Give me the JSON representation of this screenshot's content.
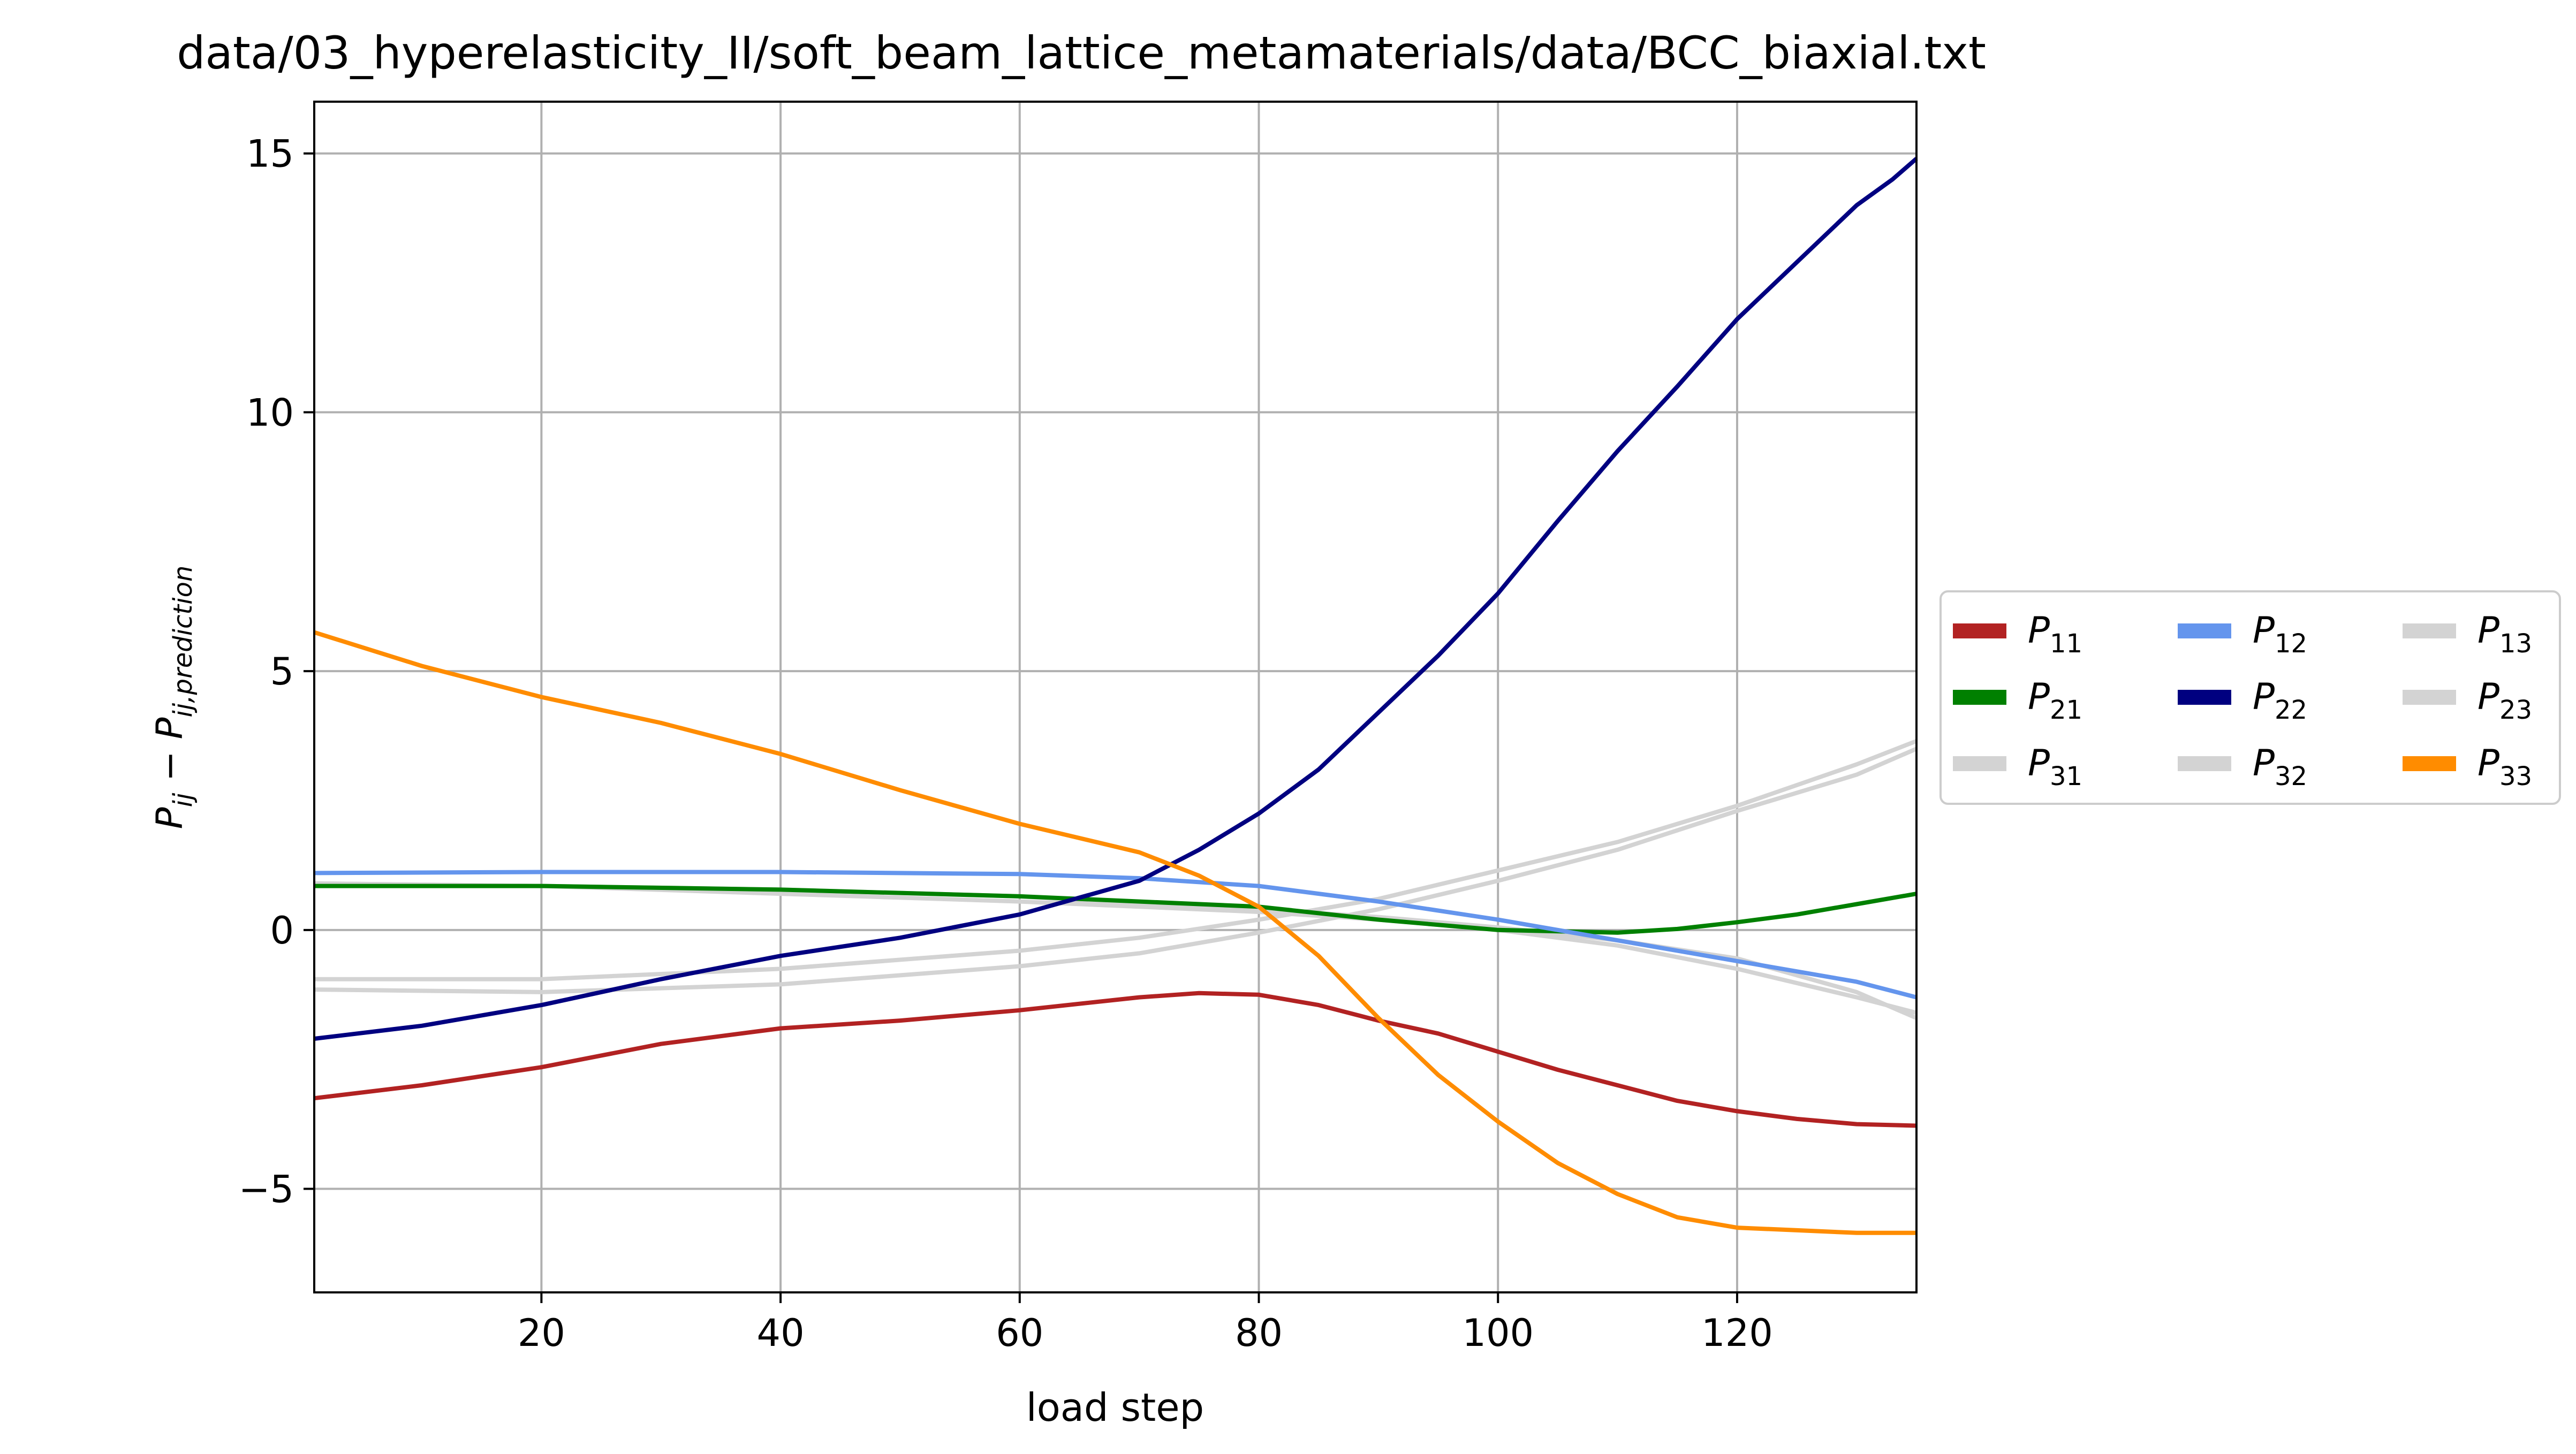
{
  "chart_data": {
    "type": "line",
    "title": "data/03_hyperelasticity_II/soft_beam_lattice_metamaterials/data/BCC_biaxial.txt",
    "xlabel": "load step",
    "ylabel": "P_ij − P_ij,prediction",
    "xlim": [
      1,
      135
    ],
    "ylim": [
      -7,
      16
    ],
    "xticks": [
      20,
      40,
      60,
      80,
      100,
      120
    ],
    "xtick_labels": [
      "20",
      "40",
      "60",
      "80",
      "100",
      "120"
    ],
    "yticks": [
      -5,
      0,
      5,
      10,
      15
    ],
    "ytick_labels": [
      "−5",
      "0",
      "5",
      "10",
      "15"
    ],
    "grid": true,
    "legend_placement": "outside-right",
    "legend_columns": 3,
    "series": [
      {
        "name": "P_11",
        "sub": "11",
        "color": "#b22222",
        "x": [
          1,
          10,
          20,
          30,
          40,
          50,
          60,
          70,
          75,
          80,
          85,
          90,
          95,
          100,
          105,
          110,
          115,
          120,
          125,
          130,
          135
        ],
        "y": [
          -3.25,
          -3.0,
          -2.65,
          -2.2,
          -1.9,
          -1.75,
          -1.55,
          -1.3,
          -1.22,
          -1.25,
          -1.45,
          -1.75,
          -2.0,
          -2.35,
          -2.7,
          -3.0,
          -3.3,
          -3.5,
          -3.65,
          -3.75,
          -3.78
        ]
      },
      {
        "name": "P_21",
        "sub": "21",
        "color": "#008000",
        "x": [
          1,
          20,
          40,
          60,
          80,
          90,
          100,
          110,
          115,
          120,
          125,
          130,
          135
        ],
        "y": [
          0.85,
          0.85,
          0.78,
          0.65,
          0.45,
          0.2,
          0.0,
          -0.05,
          0.02,
          0.15,
          0.3,
          0.5,
          0.7
        ]
      },
      {
        "name": "P_31",
        "sub": "31",
        "color": "#d3d3d3",
        "x": [
          1,
          20,
          40,
          60,
          70,
          80,
          90,
          100,
          110,
          120,
          130,
          135
        ],
        "y": [
          -0.95,
          -0.95,
          -0.75,
          -0.4,
          -0.15,
          0.2,
          0.6,
          1.15,
          1.7,
          2.4,
          3.2,
          3.65
        ]
      },
      {
        "name": "P_12",
        "sub": "12",
        "color": "#6495ed",
        "x": [
          1,
          20,
          40,
          60,
          70,
          80,
          90,
          100,
          110,
          120,
          130,
          135
        ],
        "y": [
          1.1,
          1.12,
          1.12,
          1.08,
          1.0,
          0.85,
          0.55,
          0.2,
          -0.2,
          -0.6,
          -1.0,
          -1.3
        ]
      },
      {
        "name": "P_22",
        "sub": "22",
        "color": "#000080",
        "x": [
          1,
          10,
          20,
          30,
          40,
          50,
          60,
          70,
          75,
          80,
          85,
          90,
          95,
          100,
          105,
          110,
          115,
          120,
          125,
          130,
          133,
          135
        ],
        "y": [
          -2.1,
          -1.85,
          -1.45,
          -0.95,
          -0.5,
          -0.15,
          0.3,
          0.95,
          1.55,
          2.25,
          3.1,
          4.2,
          5.3,
          6.5,
          7.9,
          9.25,
          10.5,
          11.8,
          12.9,
          14.0,
          14.5,
          14.9
        ]
      },
      {
        "name": "P_32",
        "sub": "32",
        "color": "#d3d3d3",
        "x": [
          1,
          20,
          40,
          60,
          70,
          80,
          90,
          100,
          110,
          120,
          130,
          135
        ],
        "y": [
          -1.15,
          -1.2,
          -1.05,
          -0.7,
          -0.45,
          -0.05,
          0.4,
          0.95,
          1.55,
          2.3,
          3.0,
          3.5
        ]
      },
      {
        "name": "P_13",
        "sub": "13",
        "color": "#d3d3d3",
        "x": [
          1,
          20,
          40,
          60,
          70,
          80,
          90,
          100,
          110,
          120,
          130,
          135
        ],
        "y": [
          0.9,
          0.85,
          0.7,
          0.55,
          0.45,
          0.35,
          0.2,
          0.0,
          -0.3,
          -0.75,
          -1.3,
          -1.6
        ]
      },
      {
        "name": "P_23",
        "sub": "23",
        "color": "#d3d3d3",
        "x": [
          1,
          20,
          40,
          60,
          70,
          80,
          90,
          100,
          110,
          120,
          130,
          135
        ],
        "y": [
          0.9,
          0.85,
          0.78,
          0.65,
          0.5,
          0.4,
          0.25,
          0.05,
          -0.2,
          -0.55,
          -1.2,
          -1.7
        ]
      },
      {
        "name": "P_33",
        "sub": "33",
        "color": "#ff8c00",
        "x": [
          1,
          10,
          20,
          30,
          40,
          50,
          60,
          70,
          75,
          80,
          85,
          90,
          95,
          100,
          105,
          110,
          115,
          120,
          125,
          130,
          135
        ],
        "y": [
          5.75,
          5.1,
          4.5,
          4.0,
          3.4,
          2.7,
          2.05,
          1.5,
          1.05,
          0.45,
          -0.5,
          -1.7,
          -2.8,
          -3.7,
          -4.5,
          -5.1,
          -5.55,
          -5.75,
          -5.8,
          -5.85,
          -5.85
        ]
      }
    ]
  }
}
